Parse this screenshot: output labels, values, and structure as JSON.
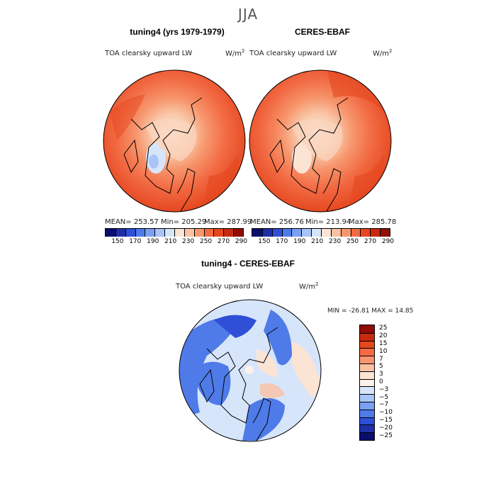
{
  "season": "JJA",
  "panels": [
    {
      "title": "tuning4 (yrs 1979-1979)",
      "variable": "TOA clearsky upward LW",
      "units": "W/m",
      "units_sup": "2",
      "stats": {
        "mean": "MEAN= 253.57",
        "min": "Min= 205.29",
        "max": "Max= 287.99"
      }
    },
    {
      "title": "CERES-EBAF",
      "variable": "TOA clearsky upward LW",
      "units": "W/m",
      "units_sup": "2",
      "stats": {
        "mean": "MEAN= 256.76",
        "min": "Min= 213.94",
        "max": "Max= 285.78"
      }
    }
  ],
  "top_colorbar": {
    "ticks": [
      "150",
      "170",
      "190",
      "210",
      "230",
      "250",
      "270",
      "290"
    ],
    "colors": [
      "#0a0f6e",
      "#1f2fa8",
      "#2f4fd6",
      "#4f7be8",
      "#7aa0f0",
      "#a9c4f7",
      "#d7e5fb",
      "#fbe4d4",
      "#fbc1a1",
      "#f7966d",
      "#f26a43",
      "#e5471f",
      "#c72a10",
      "#8f0d05"
    ]
  },
  "diff_panel": {
    "title": "tuning4 - CERES-EBAF",
    "variable": "TOA clearsky upward LW",
    "units": "W/m",
    "units_sup": "2",
    "minmax": "MIN = -26.81  MAX =  14.85"
  },
  "diff_colorbar": {
    "labels": [
      "25",
      "20",
      "15",
      "10",
      "7",
      "5",
      "3",
      "0",
      "−3",
      "−5",
      "−7",
      "−10",
      "−15",
      "−20",
      "−25"
    ],
    "colors": [
      "#8f0d05",
      "#c72a10",
      "#e5471f",
      "#f26a43",
      "#f7966d",
      "#fbc1a1",
      "#fbe4d4",
      "#fdf2ea",
      "#d7e5fb",
      "#a9c4f7",
      "#7aa0f0",
      "#4f7be8",
      "#2f4fd6",
      "#1f2fa8",
      "#0a0f6e"
    ]
  }
}
